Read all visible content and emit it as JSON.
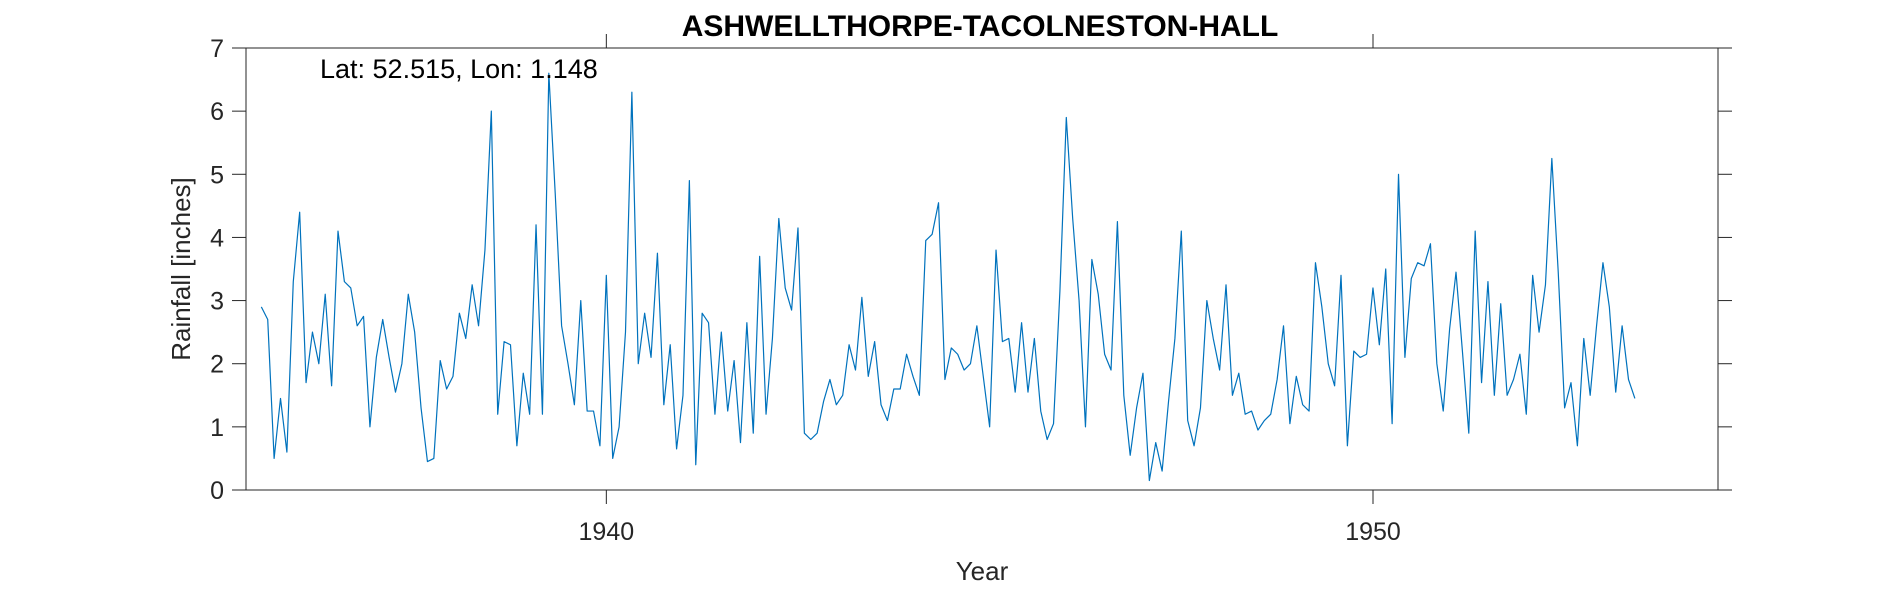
{
  "chart_data": {
    "type": "line",
    "title": "ASHWELLTHORPE-TACOLNESTON-HALL",
    "annotation": "Lat: 52.515, Lon: 1.148",
    "xlabel": "Year",
    "ylabel": "Rainfall [inches]",
    "xlim": [
      1935.3,
      1954.5
    ],
    "ylim": [
      0,
      7
    ],
    "xticks": [
      1940,
      1950
    ],
    "xtick_labels": [
      "1940",
      "1950"
    ],
    "yticks": [
      0,
      1,
      2,
      3,
      4,
      5,
      6,
      7
    ],
    "ytick_labels": [
      "0",
      "1",
      "2",
      "3",
      "4",
      "5",
      "6",
      "7"
    ],
    "grid": false,
    "line_color": "#0072BD",
    "series": [
      {
        "x_start": 1935.5,
        "x_step": 0.08333,
        "values": [
          2.9,
          2.7,
          0.5,
          1.45,
          0.6,
          3.3,
          4.4,
          1.7,
          2.5,
          2.0,
          3.1,
          1.65,
          4.1,
          3.3,
          3.2,
          2.6,
          2.75,
          1.0,
          2.1,
          2.7,
          2.1,
          1.55,
          2.0,
          3.1,
          2.5,
          1.3,
          0.45,
          0.5,
          2.05,
          1.6,
          1.8,
          2.8,
          2.4,
          3.25,
          2.6,
          3.8,
          6.0,
          1.2,
          2.35,
          2.3,
          0.7,
          1.85,
          1.2,
          4.2,
          1.2,
          6.6,
          4.7,
          2.6,
          2.0,
          1.35,
          3.0,
          1.25,
          1.25,
          0.7,
          3.4,
          0.5,
          1.0,
          2.5,
          6.3,
          2.0,
          2.8,
          2.1,
          3.75,
          1.35,
          2.3,
          0.65,
          1.5,
          4.9,
          0.4,
          2.8,
          2.65,
          1.2,
          2.5,
          1.25,
          2.05,
          0.75,
          2.65,
          0.9,
          3.7,
          1.2,
          2.4,
          4.3,
          3.2,
          2.85,
          4.15,
          0.9,
          0.8,
          0.9,
          1.4,
          1.75,
          1.35,
          1.5,
          2.3,
          1.9,
          3.05,
          1.8,
          2.35,
          1.35,
          1.1,
          1.6,
          1.6,
          2.15,
          1.8,
          1.5,
          3.95,
          4.05,
          4.55,
          1.75,
          2.25,
          2.15,
          1.9,
          2.0,
          2.6,
          1.8,
          1.0,
          3.8,
          2.35,
          2.4,
          1.55,
          2.65,
          1.55,
          2.4,
          1.25,
          0.8,
          1.05,
          3.15,
          5.9,
          4.3,
          3.0,
          1.0,
          3.65,
          3.1,
          2.15,
          1.9,
          4.25,
          1.5,
          0.55,
          1.3,
          1.85,
          0.15,
          0.75,
          0.3,
          1.4,
          2.4,
          4.1,
          1.1,
          0.7,
          1.3,
          3.0,
          2.4,
          1.9,
          3.25,
          1.5,
          1.85,
          1.2,
          1.25,
          0.95,
          1.1,
          1.2,
          1.75,
          2.6,
          1.05,
          1.8,
          1.35,
          1.25,
          3.6,
          2.9,
          2.0,
          1.65,
          3.4,
          0.7,
          2.2,
          2.1,
          2.15,
          3.2,
          2.3,
          3.5,
          1.05,
          5.0,
          2.1,
          3.35,
          3.6,
          3.55,
          3.9,
          2.0,
          1.25,
          2.55,
          3.45,
          2.2,
          0.9,
          4.1,
          1.7,
          3.3,
          1.5,
          2.95,
          1.5,
          1.75,
          2.15,
          1.2,
          3.4,
          2.5,
          3.25,
          5.25,
          3.45,
          1.3,
          1.7,
          0.7,
          2.4,
          1.5,
          2.6,
          3.6,
          2.9,
          1.55,
          2.6,
          1.75,
          1.45
        ]
      }
    ]
  }
}
